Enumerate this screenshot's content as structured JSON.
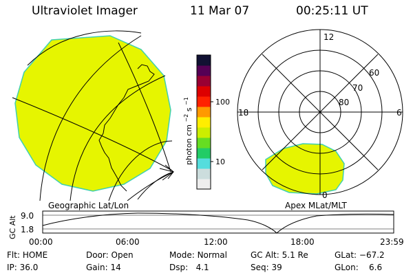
{
  "header": {
    "title": "Ultraviolet Imager",
    "date": "11 Mar 07",
    "time": "00:25:11 UT"
  },
  "colorbar": {
    "unit_label": "photon cm",
    "unit_exp1": "−2",
    "unit_mid": "s",
    "unit_exp2": "−1",
    "tick_100": "100",
    "tick_10": "10",
    "colors": [
      "#eeeeee",
      "#ccdddd",
      "#55dddd",
      "#22cc66",
      "#66dd22",
      "#ccee00",
      "#ffee00",
      "#ff9900",
      "#ff2200",
      "#dd0000",
      "#990033",
      "#550055",
      "#111133"
    ]
  },
  "left_panel": {
    "label": "Geographic Lat/Lon",
    "fill_color": "#e6f500",
    "edge_color": "#3fd0b0"
  },
  "right_panel": {
    "label": "Apex MLat/MLT",
    "mlt_12": "12",
    "mlt_18": "18",
    "mlt_6": "6",
    "mlt_0": "0",
    "lat_60": "60",
    "lat_70": "70",
    "lat_80": "80"
  },
  "altitude_plot": {
    "ylabel": "GC Alt",
    "y_top": "9.0",
    "y_bottom": "1.8",
    "x_ticks": [
      "00:00",
      "06:00",
      "12:00",
      "18:00",
      "23:59"
    ]
  },
  "status": {
    "flt_label": "Flt:",
    "flt_value": "HOME",
    "door_label": "Door:",
    "door_value": "Open",
    "mode_label": "Mode:",
    "mode_value": "Normal",
    "gcalt_label": "GC Alt:",
    "gcalt_value": "5.1 Re",
    "glat_label": "GLat:",
    "glat_value": "−67.2",
    "ip_label": "IP:",
    "ip_value": "36.0",
    "gain_label": "Gain:",
    "gain_value": "14",
    "dsp_label": "Dsp:",
    "dsp_value": "4.1",
    "seq_label": "Seq:",
    "seq_value": "39",
    "glon_label": "GLon:",
    "glon_value": "6.6"
  }
}
